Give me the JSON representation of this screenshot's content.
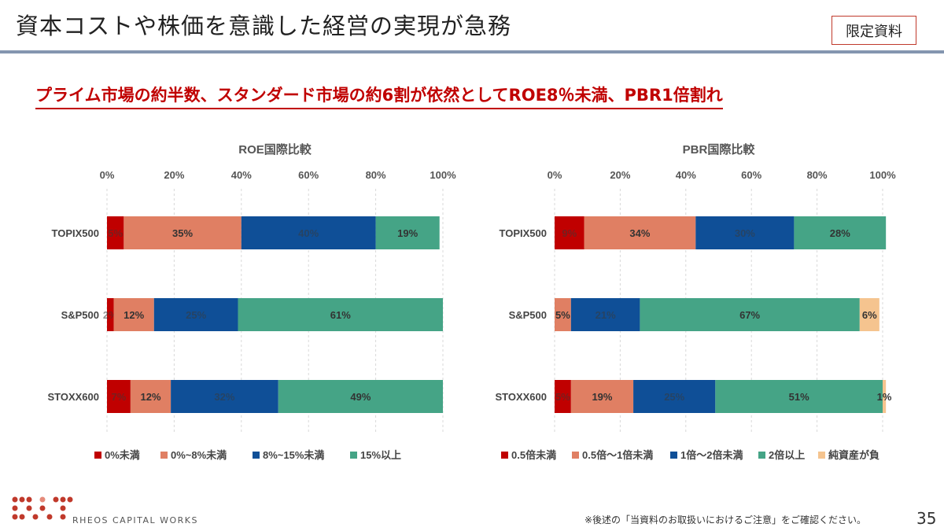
{
  "page_title": "資本コストや株価を意識した経営の実現が急務",
  "badge": "限定資料",
  "headline": "プライム市場の約半数、スタンダード市場の約6割が依然としてROE8％未満、PBR1倍割れ",
  "footer": {
    "logo_text": "RHEOS CAPITAL WORKS",
    "note": "※後述の「当資料のお取扱いにおけるご注意」をご確認ください。",
    "page_number": "35"
  },
  "chart_data": [
    {
      "type": "bar",
      "orientation": "horizontal",
      "stacked": "percent",
      "title": "ROE国際比較",
      "categories": [
        "TOPIX500",
        "S&P500",
        "STOXX600"
      ],
      "axis": {
        "range": [
          0,
          100
        ],
        "ticks": [
          "0%",
          "20%",
          "40%",
          "60%",
          "80%",
          "100%"
        ],
        "position": "top"
      },
      "series": [
        {
          "name": "0%未満",
          "color": "#c00000",
          "values": [
            5,
            2,
            7
          ],
          "labels": [
            "5%",
            "2%",
            "7%"
          ]
        },
        {
          "name": "0%~8%未満",
          "color": "#e07f63",
          "values": [
            35,
            12,
            12
          ],
          "labels": [
            "35%",
            "12%",
            "12%"
          ]
        },
        {
          "name": "8%~15%未満",
          "color": "#0f4f97",
          "values": [
            40,
            25,
            32
          ],
          "labels": [
            "40%",
            "25%",
            "32%"
          ]
        },
        {
          "name": "15%以上",
          "color": "#45a486",
          "values": [
            19,
            61,
            49
          ],
          "labels": [
            "19%",
            "61%",
            "49%"
          ]
        }
      ],
      "legend": "bottom"
    },
    {
      "type": "bar",
      "orientation": "horizontal",
      "stacked": "percent",
      "title": "PBR国際比較",
      "categories": [
        "TOPIX500",
        "S&P500",
        "STOXX600"
      ],
      "axis": {
        "range": [
          0,
          100
        ],
        "ticks": [
          "0%",
          "20%",
          "40%",
          "60%",
          "80%",
          "100%"
        ],
        "position": "top"
      },
      "series": [
        {
          "name": "0.5倍未満",
          "color": "#c00000",
          "values": [
            9,
            0,
            5
          ],
          "labels": [
            "9%",
            "",
            "5%"
          ]
        },
        {
          "name": "0.5倍～1倍未満",
          "color": "#e07f63",
          "values": [
            34,
            5,
            19
          ],
          "labels": [
            "34%",
            "5%",
            "19%"
          ]
        },
        {
          "name": "1倍～2倍未満",
          "color": "#0f4f97",
          "values": [
            30,
            21,
            25
          ],
          "labels": [
            "30%",
            "21%",
            "25%"
          ]
        },
        {
          "name": "2倍以上",
          "color": "#45a486",
          "values": [
            28,
            67,
            51
          ],
          "labels": [
            "28%",
            "67%",
            "51%"
          ]
        },
        {
          "name": "純資産が負",
          "color": "#f5c48f",
          "values": [
            0,
            6,
            1
          ],
          "labels": [
            "",
            "6%",
            "1%"
          ]
        }
      ],
      "legend": "bottom"
    }
  ]
}
